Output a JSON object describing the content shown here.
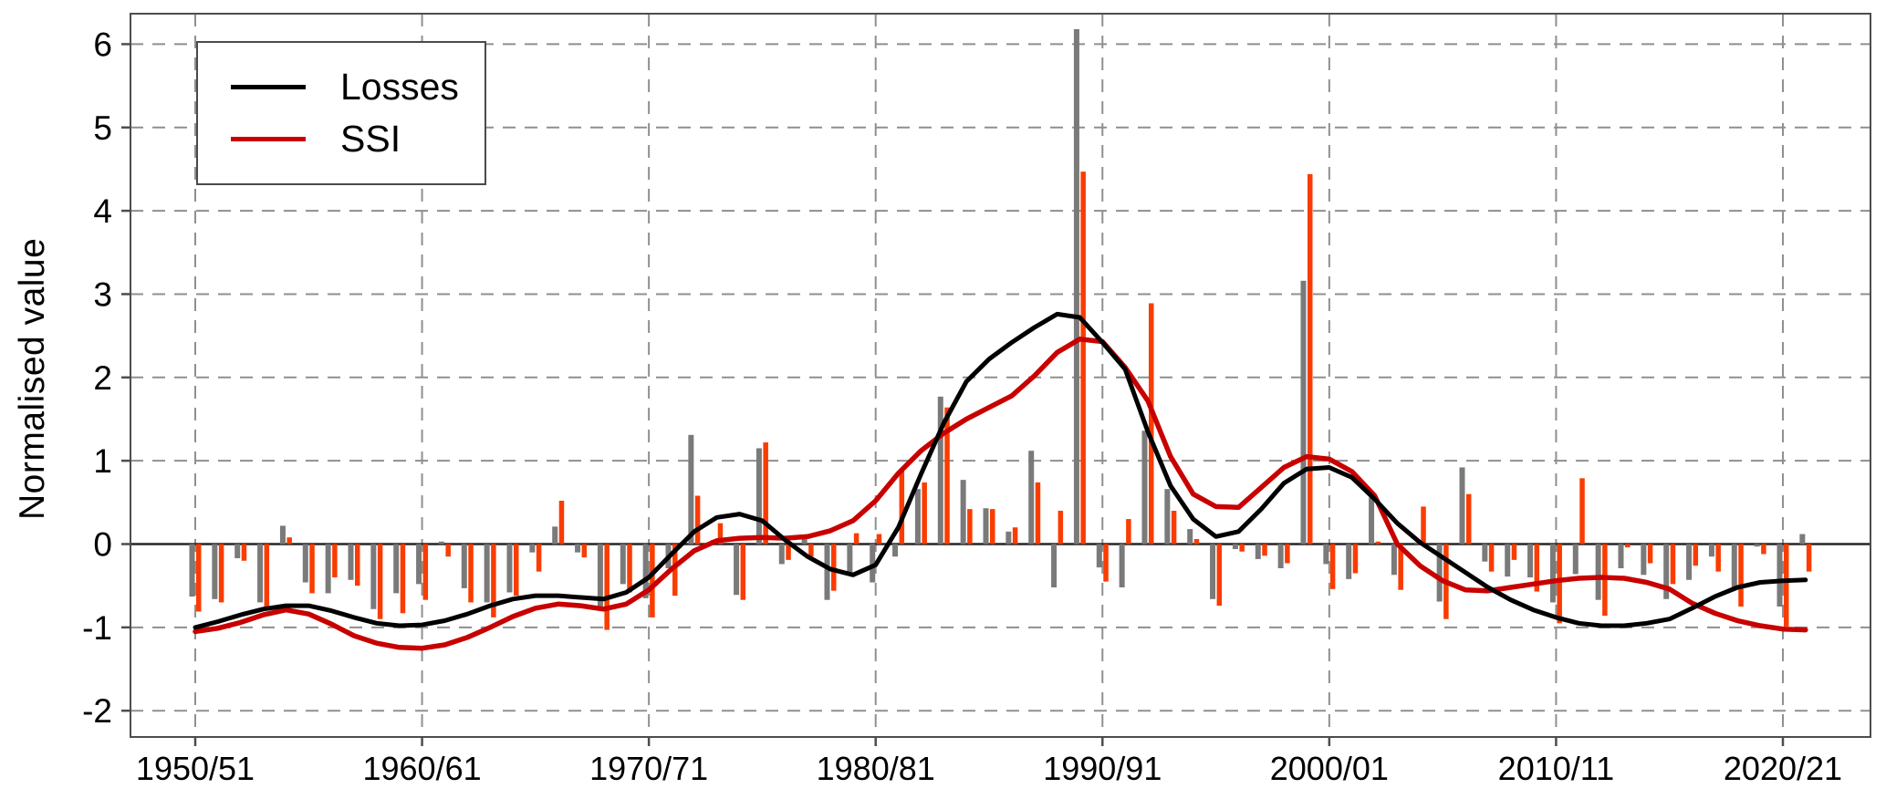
{
  "axes": {
    "y_title": "Normalised value",
    "y_tick_values": [
      6,
      5,
      4,
      3,
      2,
      1,
      0,
      -1,
      -2
    ],
    "y_tick_labels": [
      "6",
      "5",
      "4",
      "3",
      "2",
      "1",
      "0",
      "-1",
      "-2"
    ],
    "x_tick_years": [
      1950,
      1960,
      1970,
      1980,
      1990,
      2000,
      2010,
      2020
    ],
    "x_tick_labels": [
      "1950/51",
      "1960/61",
      "1970/71",
      "1980/81",
      "1990/91",
      "2000/01",
      "2010/11",
      "2020/21"
    ]
  },
  "legend": {
    "items": [
      {
        "label": "Losses",
        "color": "#000000"
      },
      {
        "label": "SSI",
        "color": "#c80000"
      }
    ]
  },
  "colors": {
    "losses_bar": "#7a7a7a",
    "ssi_bar": "#fa3c00",
    "losses_line": "#000000",
    "ssi_line": "#c80000",
    "gridline": "#8f8f8f",
    "zero_line": "#262626",
    "frame": "#4d4d4d",
    "text": "#000000"
  },
  "chart_data": {
    "type": "bar",
    "title": "",
    "xlabel": "",
    "ylabel": "Normalised value",
    "ylim": [
      -2.35,
      6.37
    ],
    "grid": true,
    "legend_position": "top-left",
    "x_start_year": 1950,
    "x_end_year": 2021,
    "x_tick_years": [
      1950,
      1960,
      1970,
      1980,
      1990,
      2000,
      2010,
      2020
    ],
    "x_tick_labels": [
      "1950/51",
      "1960/61",
      "1970/71",
      "1980/81",
      "1990/91",
      "2000/01",
      "2010/11",
      "2020/21"
    ],
    "series": [
      {
        "name": "Losses (annual)",
        "render": "bar",
        "color": "#7a7a7a",
        "values": [
          -0.63,
          -0.66,
          -0.17,
          -0.7,
          0.22,
          -0.46,
          -0.59,
          -0.43,
          -0.78,
          -0.59,
          -0.48,
          0.03,
          -0.53,
          -0.7,
          -0.58,
          -0.1,
          0.21,
          -0.1,
          -0.78,
          -0.48,
          -0.65,
          -0.29,
          1.31,
          0.05,
          -0.61,
          1.15,
          -0.24,
          0.07,
          -0.67,
          -0.34,
          -0.46,
          -0.15,
          0.66,
          1.77,
          0.77,
          0.43,
          0.15,
          1.12,
          -0.52,
          6.18,
          -0.28,
          -0.52,
          1.36,
          0.66,
          0.18,
          -0.66,
          -0.06,
          -0.18,
          -0.29,
          3.16,
          -0.24,
          -0.42,
          0.56,
          -0.37,
          0.02,
          -0.69,
          0.92,
          -0.21,
          -0.39,
          -0.4,
          -0.7,
          -0.36,
          -0.67,
          -0.29,
          -0.37,
          -0.66,
          -0.43,
          -0.15,
          -0.55,
          -0.03,
          -0.75,
          0.12
        ]
      },
      {
        "name": "SSI (annual)",
        "render": "bar",
        "color": "#fa3c00",
        "values": [
          -0.81,
          -0.7,
          -0.2,
          -0.79,
          0.08,
          -0.59,
          -0.4,
          -0.5,
          -0.9,
          -0.83,
          -0.67,
          -0.15,
          -0.7,
          -0.88,
          -0.62,
          -0.33,
          0.52,
          -0.16,
          -1.03,
          -0.58,
          -0.88,
          -0.62,
          0.58,
          0.25,
          -0.67,
          1.22,
          -0.19,
          -0.15,
          -0.56,
          0.13,
          0.12,
          0.89,
          0.74,
          1.64,
          0.42,
          0.42,
          0.2,
          0.74,
          0.4,
          4.47,
          -0.45,
          0.3,
          2.89,
          0.4,
          0.06,
          -0.74,
          -0.09,
          -0.14,
          -0.23,
          4.44,
          -0.54,
          -0.35,
          0.03,
          -0.55,
          0.45,
          -0.9,
          0.6,
          -0.33,
          -0.19,
          -0.57,
          -0.95,
          0.79,
          -0.86,
          -0.04,
          -0.23,
          -0.48,
          -0.26,
          -0.33,
          -0.75,
          -0.12,
          -0.99,
          -0.33
        ]
      },
      {
        "name": "Losses (smoothed)",
        "render": "line",
        "color": "#000000",
        "values": [
          -1.0,
          -0.93,
          -0.85,
          -0.78,
          -0.74,
          -0.74,
          -0.8,
          -0.88,
          -0.95,
          -0.98,
          -0.97,
          -0.92,
          -0.84,
          -0.74,
          -0.66,
          -0.62,
          -0.62,
          -0.64,
          -0.66,
          -0.58,
          -0.4,
          -0.12,
          0.15,
          0.32,
          0.36,
          0.28,
          0.05,
          -0.15,
          -0.3,
          -0.37,
          -0.25,
          0.2,
          0.84,
          1.45,
          1.95,
          2.22,
          2.42,
          2.6,
          2.76,
          2.72,
          2.42,
          2.1,
          1.35,
          0.7,
          0.3,
          0.09,
          0.15,
          0.42,
          0.73,
          0.9,
          0.92,
          0.8,
          0.54,
          0.25,
          0.02,
          -0.16,
          -0.34,
          -0.52,
          -0.67,
          -0.79,
          -0.88,
          -0.95,
          -0.98,
          -0.98,
          -0.95,
          -0.9,
          -0.77,
          -0.63,
          -0.52,
          -0.46,
          -0.44,
          -0.43
        ]
      },
      {
        "name": "SSI (smoothed)",
        "render": "line",
        "color": "#c80000",
        "values": [
          -1.05,
          -1.01,
          -0.94,
          -0.85,
          -0.79,
          -0.84,
          -0.96,
          -1.1,
          -1.19,
          -1.24,
          -1.25,
          -1.21,
          -1.12,
          -1.0,
          -0.87,
          -0.77,
          -0.72,
          -0.74,
          -0.78,
          -0.72,
          -0.55,
          -0.3,
          -0.08,
          0.04,
          0.07,
          0.08,
          0.07,
          0.09,
          0.16,
          0.28,
          0.52,
          0.85,
          1.12,
          1.33,
          1.5,
          1.64,
          1.78,
          2.02,
          2.3,
          2.46,
          2.43,
          2.12,
          1.72,
          1.05,
          0.6,
          0.45,
          0.44,
          0.68,
          0.92,
          1.05,
          1.02,
          0.87,
          0.58,
          0.0,
          -0.26,
          -0.44,
          -0.55,
          -0.56,
          -0.52,
          -0.48,
          -0.44,
          -0.41,
          -0.4,
          -0.41,
          -0.46,
          -0.54,
          -0.71,
          -0.83,
          -0.92,
          -0.98,
          -1.02,
          -1.03
        ]
      }
    ]
  }
}
